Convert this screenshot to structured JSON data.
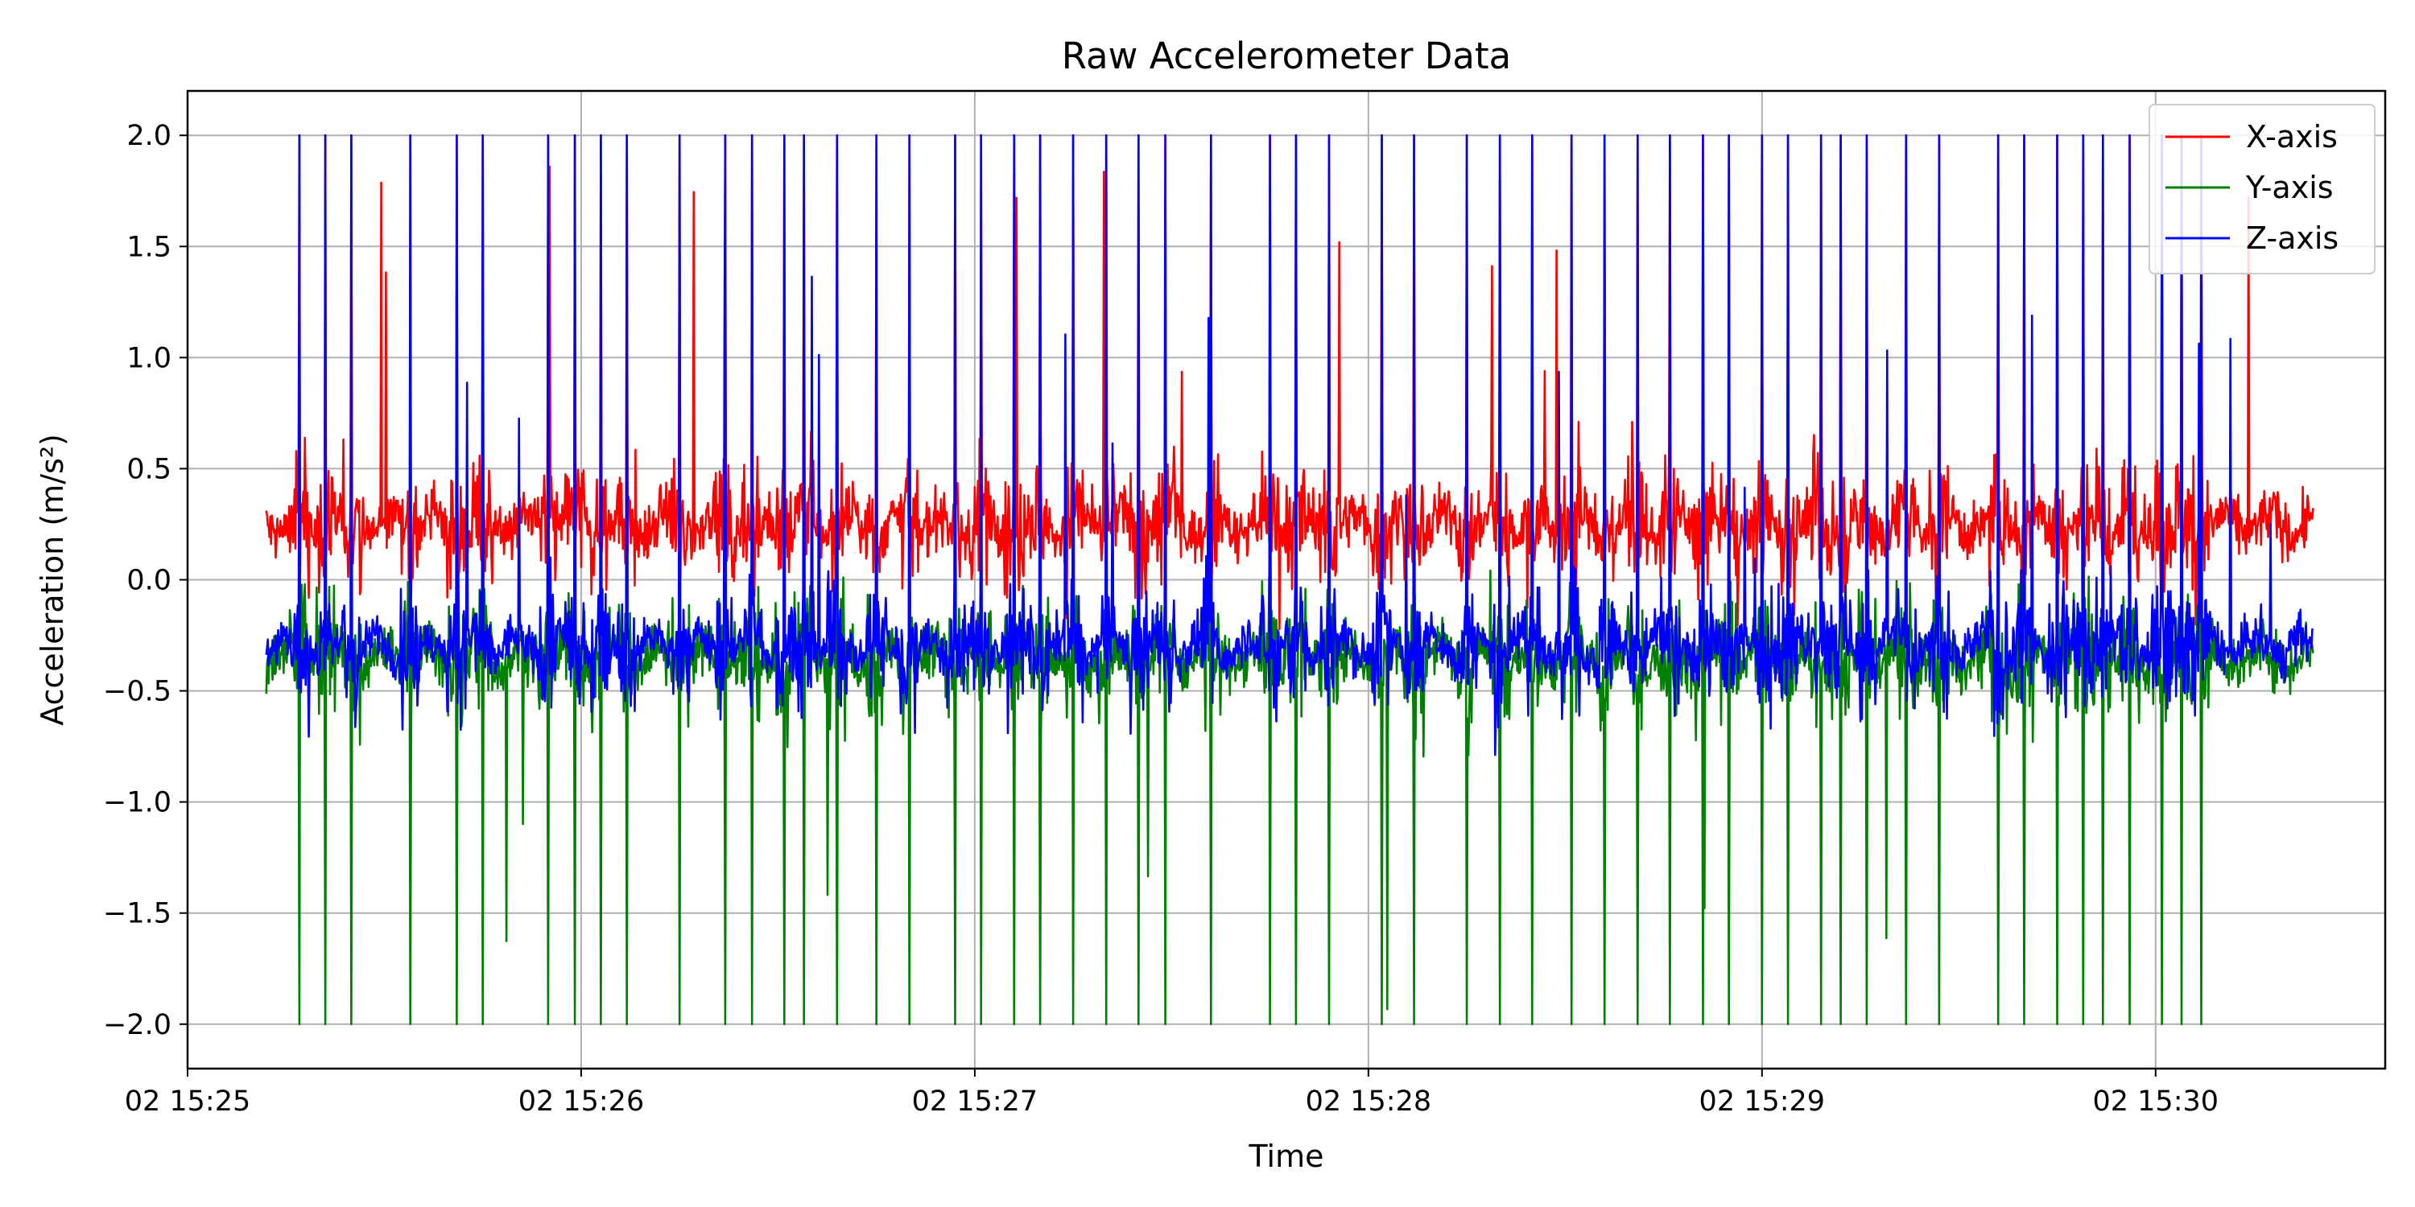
{
  "chart_data": {
    "type": "line",
    "title": "Raw Accelerometer Data",
    "xlabel": "Time",
    "ylabel": "Acceleration (m/s²)",
    "x_range": [
      "02 15:25:12",
      "02 15:30:24"
    ],
    "xlim": [
      "02 15:25:00",
      "02 15:30:35"
    ],
    "ylim": [
      -2.2,
      2.2
    ],
    "x_ticks": [
      {
        "time": "02 15:25:00",
        "label": "02 15:25"
      },
      {
        "time": "02 15:26:00",
        "label": "02 15:26"
      },
      {
        "time": "02 15:27:00",
        "label": "02 15:27"
      },
      {
        "time": "02 15:28:00",
        "label": "02 15:28"
      },
      {
        "time": "02 15:29:00",
        "label": "02 15:29"
      },
      {
        "time": "02 15:30:00",
        "label": "02 15:30"
      }
    ],
    "y_ticks": [
      {
        "value": 2.0,
        "label": "2.0"
      },
      {
        "value": 1.5,
        "label": "1.5"
      },
      {
        "value": 1.0,
        "label": "1.0"
      },
      {
        "value": 0.5,
        "label": "0.5"
      },
      {
        "value": 0.0,
        "label": "0.0"
      },
      {
        "value": -0.5,
        "label": "−0.5"
      },
      {
        "value": -1.0,
        "label": "−1.0"
      },
      {
        "value": -1.5,
        "label": "−1.5"
      },
      {
        "value": -2.0,
        "label": "−2.0"
      }
    ],
    "grid": true,
    "legend_position": "top-right",
    "series": [
      {
        "name": "X-axis",
        "color": "#ff0000",
        "baseline": 0.25,
        "noise": 0.12,
        "spike_direction": "up"
      },
      {
        "name": "Y-axis",
        "color": "#008000",
        "baseline": -0.35,
        "noise": 0.12,
        "spike_direction": "down"
      },
      {
        "name": "Z-axis",
        "color": "#0000ff",
        "baseline": -0.3,
        "noise": 0.1,
        "spike_direction": "up"
      }
    ],
    "spike_times": [
      "02 15:25:17",
      "02 15:25:21",
      "02 15:25:25",
      "02 15:25:34",
      "02 15:25:41",
      "02 15:25:45",
      "02 15:25:55",
      "02 15:25:59",
      "02 15:26:03",
      "02 15:26:07",
      "02 15:26:15",
      "02 15:26:22",
      "02 15:26:26",
      "02 15:26:31",
      "02 15:26:34",
      "02 15:26:39",
      "02 15:26:45",
      "02 15:26:50",
      "02 15:26:57",
      "02 15:27:01",
      "02 15:27:06",
      "02 15:27:10",
      "02 15:27:15",
      "02 15:27:20",
      "02 15:27:25",
      "02 15:27:29",
      "02 15:27:36",
      "02 15:27:45",
      "02 15:27:49",
      "02 15:27:54",
      "02 15:28:02",
      "02 15:28:07",
      "02 15:28:15",
      "02 15:28:20",
      "02 15:28:25",
      "02 15:28:31",
      "02 15:28:36",
      "02 15:28:41",
      "02 15:28:46",
      "02 15:28:51",
      "02 15:28:55",
      "02 15:29:00",
      "02 15:29:04",
      "02 15:29:09",
      "02 15:29:12",
      "02 15:29:16",
      "02 15:29:22",
      "02 15:29:27",
      "02 15:29:36",
      "02 15:29:40",
      "02 15:29:45",
      "02 15:29:49",
      "02 15:29:52",
      "02 15:29:56",
      "02 15:30:01",
      "02 15:30:04",
      "02 15:30:07"
    ]
  }
}
